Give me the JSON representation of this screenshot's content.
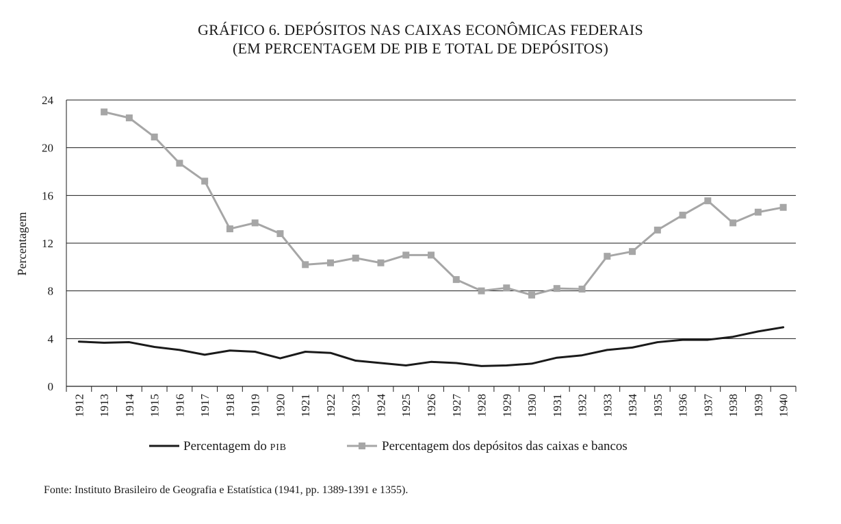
{
  "title_line1": "GRÁFICO 6. DEPÓSITOS NAS CAIXAS ECONÔMICAS FEDERAIS",
  "title_line2": "(EM PERCENTAGEM DE PIB E TOTAL DE DEPÓSITOS)",
  "source": "Fonte: Instituto Brasileiro de Geografia e Estatística (1941, pp. 1389-1391 e 1355).",
  "colors": {
    "pib": "#1a1a1a",
    "depositos": "#a6a6a6",
    "grid": "#1a1a1a"
  },
  "chart_data": {
    "type": "line",
    "title": "GRÁFICO 6. DEPÓSITOS NAS CAIXAS ECONÔMICAS FEDERAIS (EM PERCENTAGEM DE PIB E TOTAL DE DEPÓSITOS)",
    "xlabel": "",
    "ylabel": "Percentagem",
    "ylim": [
      0,
      24
    ],
    "yticks": [
      0,
      4,
      8,
      12,
      16,
      20,
      24
    ],
    "grid": true,
    "legend_position": "bottom",
    "categories": [
      "1912",
      "1913",
      "1914",
      "1915",
      "1916",
      "1917",
      "1918",
      "1919",
      "1920",
      "1921",
      "1922",
      "1923",
      "1924",
      "1925",
      "1926",
      "1927",
      "1928",
      "1929",
      "1930",
      "1931",
      "1932",
      "1933",
      "1934",
      "1935",
      "1936",
      "1937",
      "1938",
      "1939",
      "1940"
    ],
    "series": [
      {
        "name": "Percentagem do PIB",
        "legend_main": "Percentagem do ",
        "legend_suffix": "PIB",
        "marker": "none",
        "values": [
          3.75,
          3.65,
          3.7,
          3.3,
          3.05,
          2.65,
          3.0,
          2.9,
          2.35,
          2.9,
          2.8,
          2.15,
          1.95,
          1.75,
          2.05,
          1.95,
          1.7,
          1.75,
          1.9,
          2.4,
          2.6,
          3.05,
          3.25,
          3.7,
          3.9,
          3.9,
          4.15,
          4.6,
          4.95
        ]
      },
      {
        "name": "Percentagem dos depósitos das caixas e bancos",
        "legend_main": "Percentagem dos depósitos das caixas e bancos",
        "legend_suffix": "",
        "marker": "square",
        "values": [
          null,
          23.0,
          22.5,
          20.9,
          18.7,
          17.2,
          13.2,
          13.7,
          12.8,
          10.2,
          10.35,
          10.75,
          10.35,
          11.0,
          11.0,
          8.95,
          8.0,
          8.25,
          7.65,
          8.2,
          8.15,
          10.9,
          11.3,
          13.1,
          14.35,
          15.55,
          13.7,
          14.6,
          15.0
        ]
      }
    ]
  }
}
